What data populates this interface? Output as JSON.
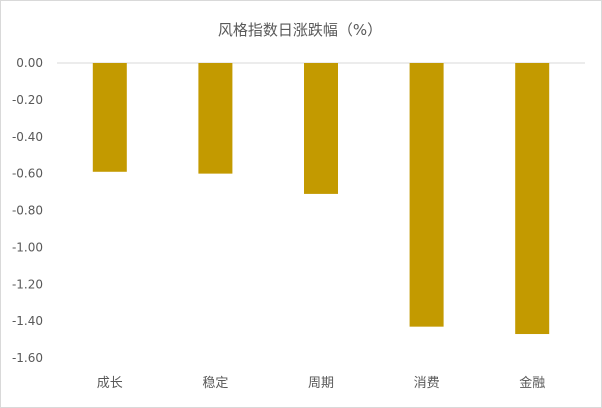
{
  "chart_data": {
    "type": "bar",
    "title": "风格指数日涨跌幅（%）",
    "xlabel": "",
    "ylabel": "",
    "categories": [
      "成长",
      "稳定",
      "周期",
      "消费",
      "金融"
    ],
    "values": [
      -0.59,
      -0.6,
      -0.71,
      -1.43,
      -1.47
    ],
    "ylim": [
      -1.6,
      0.0
    ],
    "ytick_labels": [
      "0.00",
      "-0.20",
      "-0.40",
      "-0.60",
      "-0.80",
      "-1.00",
      "-1.20",
      "-1.40",
      "-1.60"
    ],
    "grid": "horizontal",
    "legend": "none",
    "bar_color": "#C39A00",
    "axis_color": "#d9d9d9",
    "text_color": "#595959"
  }
}
